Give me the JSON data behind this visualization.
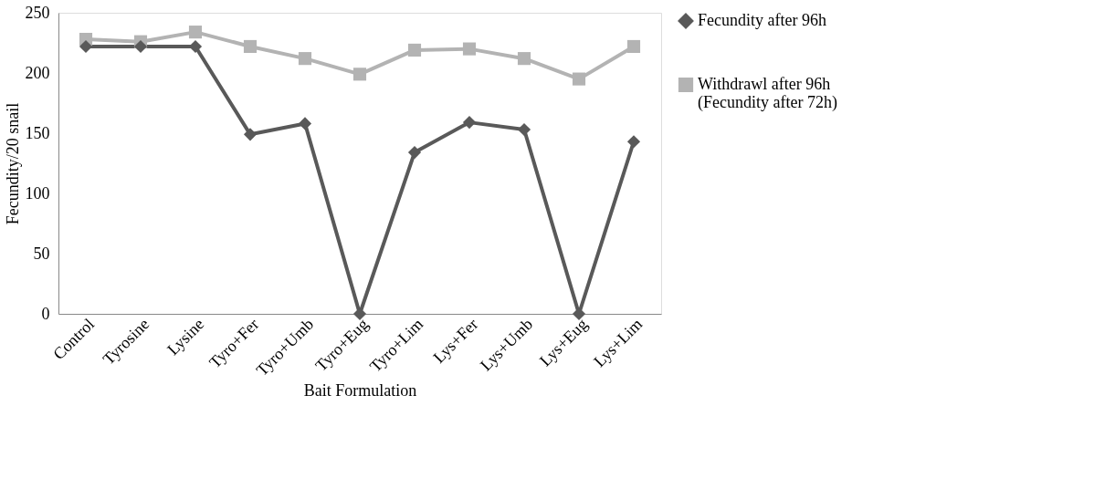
{
  "chart_data": {
    "type": "line",
    "xlabel": "Bait Formulation",
    "ylabel": "Fecundity/20 snail",
    "categories": [
      "Control",
      "Tyrosine",
      "Lysine",
      "Tyro+Fer",
      "Tyro+Umb",
      "Tyro+Eug",
      "Tyro+Lim",
      "Lys+Fer",
      "Lys+Umb",
      "Lys+Eug",
      "Lys+Lim"
    ],
    "series": [
      {
        "name": "Fecundity after 96h",
        "color": "#595959",
        "marker": "diamond",
        "values": [
          222,
          222,
          222,
          149,
          158,
          0,
          134,
          159,
          153,
          0,
          143
        ]
      },
      {
        "name": "Withdrawl after 96h (Fecundity after 72h)",
        "color": "#b3b3b3",
        "marker": "square",
        "values": [
          228,
          226,
          234,
          222,
          212,
          199,
          219,
          220,
          212,
          195,
          222
        ]
      }
    ],
    "ylim": [
      0,
      250
    ],
    "yticks": [
      0,
      50,
      100,
      150,
      200,
      250
    ],
    "grid": false,
    "legend": "right",
    "line_style": "solid"
  }
}
